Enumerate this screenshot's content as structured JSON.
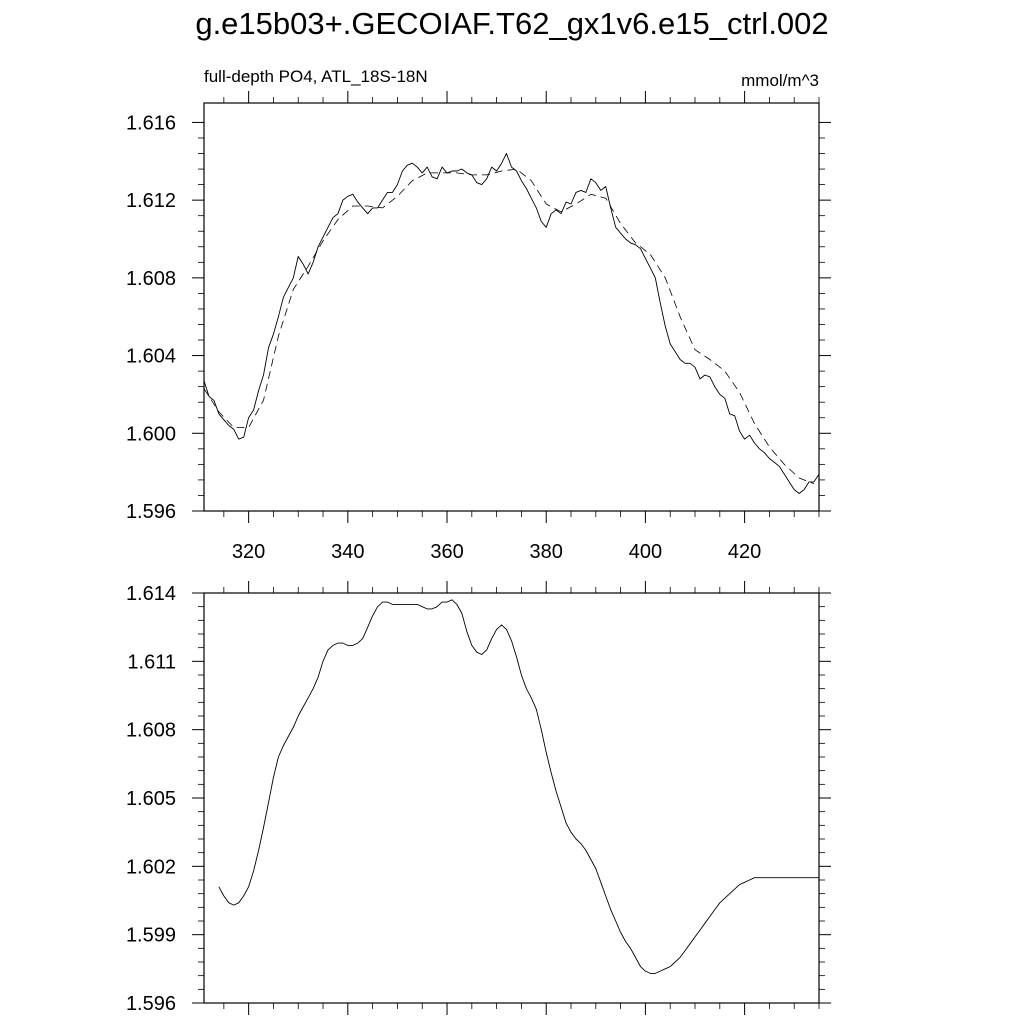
{
  "title": "g.e15b03+.GECOIAF.T62_gx1v6.e15_ctrl.002",
  "chart_data": [
    {
      "type": "line",
      "subtitle_left": "full-depth PO4, ATL_18S-18N",
      "subtitle_right": "mmol/m^3",
      "xlim": [
        311,
        435
      ],
      "ylim": [
        1.596,
        1.617
      ],
      "x_ticks": [
        320,
        340,
        360,
        380,
        400,
        420
      ],
      "x_tick_labels": [
        "320",
        "340",
        "360",
        "380",
        "400",
        "420"
      ],
      "y_ticks": [
        1.596,
        1.6,
        1.604,
        1.608,
        1.612,
        1.616
      ],
      "y_tick_labels": [
        "1.596",
        "1.600",
        "1.604",
        "1.608",
        "1.612",
        "1.616"
      ],
      "series": [
        {
          "style": "solid",
          "x": [
            311,
            312,
            313,
            314,
            315,
            316,
            317,
            318,
            319,
            320,
            321,
            322,
            323,
            324,
            325,
            326,
            327,
            328,
            329,
            330,
            331,
            332,
            333,
            334,
            335,
            336,
            337,
            338,
            339,
            340,
            341,
            342,
            343,
            344,
            345,
            346,
            347,
            348,
            349,
            350,
            351,
            352,
            353,
            354,
            355,
            356,
            357,
            358,
            359,
            360,
            361,
            362,
            363,
            364,
            365,
            366,
            367,
            368,
            369,
            370,
            371,
            372,
            373,
            374,
            375,
            376,
            377,
            378,
            379,
            380,
            381,
            382,
            383,
            384,
            385,
            386,
            387,
            388,
            389,
            390,
            391,
            392,
            393,
            394,
            395,
            396,
            397,
            398,
            399,
            400,
            401,
            402,
            403,
            404,
            405,
            406,
            407,
            408,
            409,
            410,
            411,
            412,
            413,
            414,
            415,
            416,
            417,
            418,
            419,
            420,
            421,
            422,
            423,
            424,
            425,
            426,
            427,
            428,
            429,
            430,
            431,
            432,
            433,
            434,
            435
          ],
          "values": [
            1.6027,
            1.6019,
            1.6017,
            1.601,
            1.6007,
            1.6004,
            1.6002,
            1.5997,
            1.5998,
            1.6008,
            1.6012,
            1.6022,
            1.603,
            1.6044,
            1.6051,
            1.606,
            1.607,
            1.6075,
            1.608,
            1.6091,
            1.6087,
            1.6082,
            1.6088,
            1.6096,
            1.6101,
            1.6106,
            1.6111,
            1.6113,
            1.612,
            1.6122,
            1.6123,
            1.6119,
            1.6116,
            1.6113,
            1.6116,
            1.6116,
            1.612,
            1.6124,
            1.6124,
            1.6128,
            1.6135,
            1.6138,
            1.6139,
            1.6137,
            1.6134,
            1.6137,
            1.6132,
            1.6131,
            1.6137,
            1.6134,
            1.6135,
            1.6135,
            1.6136,
            1.6134,
            1.6133,
            1.6129,
            1.6128,
            1.6131,
            1.6137,
            1.6135,
            1.6139,
            1.6144,
            1.6137,
            1.6135,
            1.613,
            1.6126,
            1.6121,
            1.6116,
            1.6109,
            1.6106,
            1.6113,
            1.6115,
            1.6113,
            1.6119,
            1.6118,
            1.6124,
            1.6125,
            1.6124,
            1.6131,
            1.6129,
            1.6125,
            1.6127,
            1.6116,
            1.6106,
            1.6103,
            1.61,
            1.6098,
            1.6097,
            1.6095,
            1.609,
            1.6085,
            1.608,
            1.6067,
            1.6055,
            1.6046,
            1.6042,
            1.6038,
            1.6036,
            1.6036,
            1.6034,
            1.6028,
            1.603,
            1.6029,
            1.6024,
            1.602,
            1.6018,
            1.601,
            1.6009,
            1.6001,
            1.5997,
            1.5999,
            1.5995,
            1.5992,
            1.599,
            1.5987,
            1.5985,
            1.5983,
            1.5979,
            1.5975,
            1.5971,
            1.5969,
            1.5971,
            1.5975,
            1.5975,
            1.5979
          ]
        },
        {
          "style": "dashed",
          "x": [
            311,
            314,
            317,
            320,
            323,
            326,
            329,
            332,
            335,
            338,
            341,
            344,
            347,
            350,
            353,
            356,
            359,
            362,
            365,
            368,
            371,
            374,
            377,
            380,
            383,
            386,
            389,
            392,
            395,
            398,
            401,
            404,
            407,
            410,
            413,
            416,
            419,
            422,
            425,
            428,
            431,
            434
          ],
          "values": [
            1.6023,
            1.6011,
            1.6003,
            1.6003,
            1.6017,
            1.605,
            1.6074,
            1.6086,
            1.6099,
            1.611,
            1.6117,
            1.6117,
            1.6116,
            1.6122,
            1.613,
            1.6134,
            1.6134,
            1.6134,
            1.6133,
            1.6133,
            1.6135,
            1.6136,
            1.613,
            1.6118,
            1.6114,
            1.6118,
            1.6123,
            1.6121,
            1.6108,
            1.6098,
            1.6092,
            1.608,
            1.606,
            1.6043,
            1.6038,
            1.6032,
            1.6021,
            1.6005,
            1.5993,
            1.5984,
            1.5977,
            1.5974
          ]
        }
      ]
    },
    {
      "type": "line",
      "xlim": [
        311,
        435
      ],
      "ylim": [
        1.596,
        1.614
      ],
      "x_ticks": [
        320,
        340,
        360,
        380,
        400,
        420
      ],
      "y_ticks": [
        1.596,
        1.599,
        1.602,
        1.605,
        1.608,
        1.611,
        1.614
      ],
      "y_tick_labels": [
        "1.596",
        "1.599",
        "1.602",
        "1.605",
        "1.608",
        "1.611",
        "1.614"
      ],
      "series": [
        {
          "style": "solid",
          "x": [
            314,
            315,
            316,
            317,
            318,
            319,
            320,
            321,
            322,
            323,
            324,
            325,
            326,
            327,
            328,
            329,
            330,
            331,
            332,
            333,
            334,
            335,
            336,
            337,
            338,
            339,
            340,
            341,
            342,
            343,
            344,
            345,
            346,
            347,
            348,
            349,
            350,
            351,
            352,
            353,
            354,
            355,
            356,
            357,
            358,
            359,
            360,
            361,
            362,
            363,
            364,
            365,
            366,
            367,
            368,
            369,
            370,
            371,
            372,
            373,
            374,
            375,
            376,
            377,
            378,
            379,
            380,
            381,
            382,
            383,
            384,
            385,
            386,
            387,
            388,
            389,
            390,
            391,
            392,
            393,
            394,
            395,
            396,
            397,
            398,
            399,
            400,
            401,
            402,
            403,
            404,
            405,
            406,
            407,
            408,
            409,
            410,
            411,
            412,
            413,
            414,
            415,
            416,
            417,
            418,
            419,
            420,
            421,
            422,
            423,
            424,
            425,
            426,
            427,
            428,
            429,
            430,
            431,
            432,
            433,
            434,
            435
          ],
          "values": [
            1.6011,
            1.6007,
            1.6004,
            1.6003,
            1.6004,
            1.6007,
            1.6011,
            1.6018,
            1.6027,
            1.6037,
            1.6048,
            1.6059,
            1.6068,
            1.6073,
            1.6077,
            1.6081,
            1.6086,
            1.609,
            1.6094,
            1.6098,
            1.6103,
            1.611,
            1.6115,
            1.6117,
            1.6118,
            1.6118,
            1.6117,
            1.6117,
            1.6118,
            1.612,
            1.6125,
            1.613,
            1.6134,
            1.6136,
            1.6136,
            1.6135,
            1.6135,
            1.6135,
            1.6135,
            1.6135,
            1.6135,
            1.6134,
            1.6133,
            1.6133,
            1.6134,
            1.6136,
            1.6136,
            1.6137,
            1.6135,
            1.6131,
            1.6123,
            1.6117,
            1.6114,
            1.6113,
            1.6115,
            1.612,
            1.6124,
            1.6126,
            1.6124,
            1.6119,
            1.6112,
            1.6104,
            1.6098,
            1.6094,
            1.6089,
            1.608,
            1.607,
            1.6061,
            1.6053,
            1.6046,
            1.6039,
            1.6035,
            1.6032,
            1.603,
            1.6027,
            1.6023,
            1.6019,
            1.6013,
            1.6007,
            1.6001,
            1.5996,
            1.5991,
            1.5987,
            1.5984,
            1.598,
            1.5976,
            1.5974,
            1.5973,
            1.5973,
            1.5974,
            1.5975,
            1.5976,
            1.5978,
            1.598,
            1.5983,
            1.5986,
            1.5989,
            1.5992,
            1.5995,
            1.5998,
            1.6001,
            1.6004,
            1.6006,
            1.6008,
            1.601,
            1.6012,
            1.6013,
            1.6014,
            1.6015,
            1.6015,
            1.6015,
            1.6015,
            1.6015,
            1.6015,
            1.6015,
            1.6015,
            1.6015,
            1.6015,
            1.6015,
            1.6015,
            1.6015,
            1.6015
          ]
        }
      ]
    }
  ]
}
